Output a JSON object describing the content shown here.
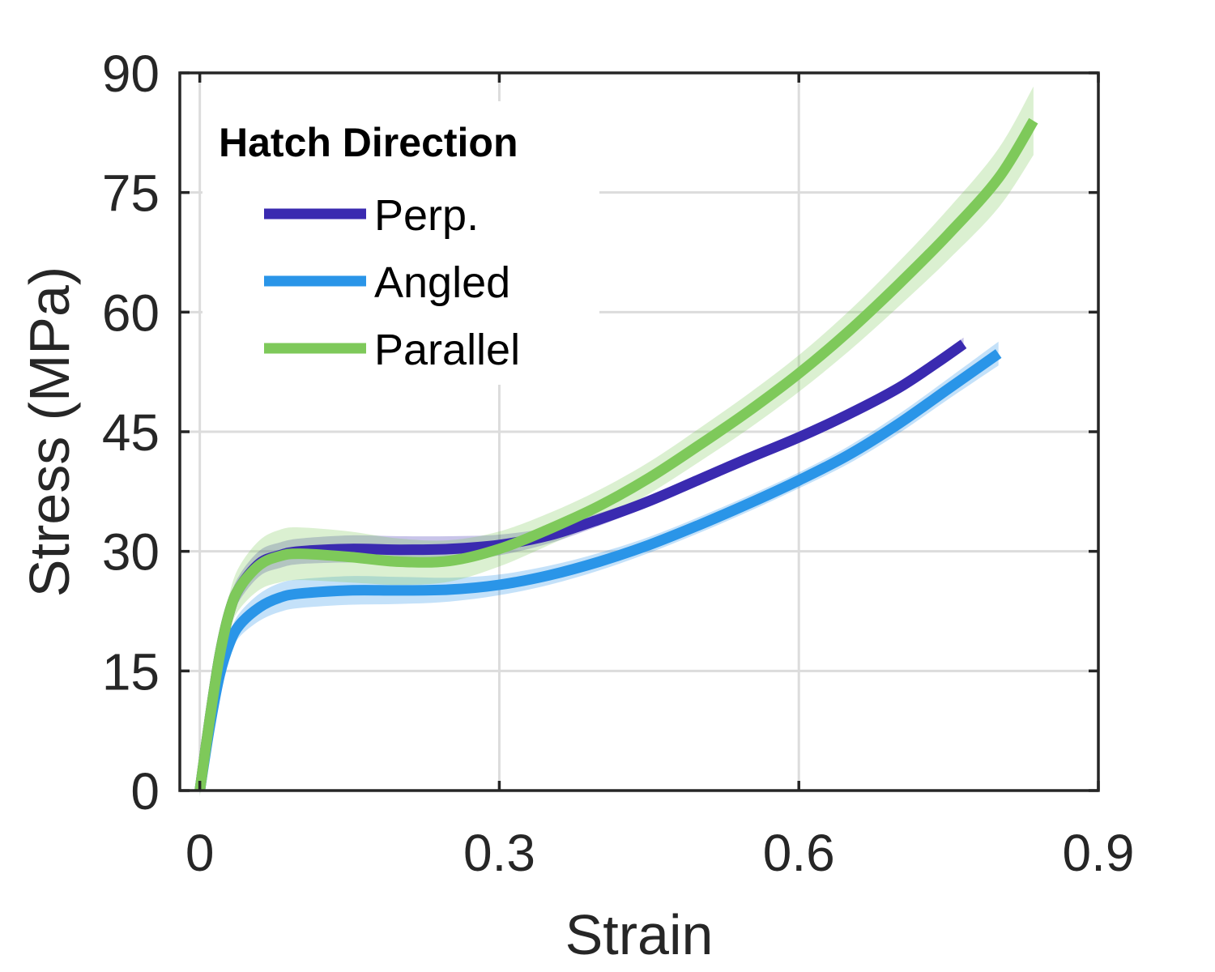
{
  "chart_data": {
    "type": "line",
    "title": "",
    "xlabel": "Strain",
    "ylabel": "Stress (MPa)",
    "xlim": [
      -0.02,
      0.9
    ],
    "ylim": [
      0,
      90
    ],
    "x_ticks": [
      0,
      0.3,
      0.6,
      0.9
    ],
    "x_tick_labels": [
      "0",
      "0.3",
      "0.6",
      "0.9"
    ],
    "y_ticks": [
      0,
      15,
      30,
      45,
      60,
      75,
      90
    ],
    "y_tick_labels": [
      "0",
      "15",
      "30",
      "45",
      "60",
      "75",
      "90"
    ],
    "grid": true,
    "legend": {
      "title": "Hatch Direction",
      "position": "top-left"
    },
    "series": [
      {
        "name": "Perp.",
        "color": "#3a2ab0",
        "band_color": "#3a2ab0",
        "x": [
          0,
          0.01,
          0.02,
          0.03,
          0.04,
          0.06,
          0.08,
          0.1,
          0.15,
          0.2,
          0.25,
          0.3,
          0.35,
          0.4,
          0.45,
          0.5,
          0.55,
          0.6,
          0.65,
          0.7,
          0.74,
          0.765
        ],
        "y": [
          0,
          9,
          17,
          22.5,
          25.5,
          28.5,
          29.5,
          30,
          30.3,
          30.2,
          30.3,
          30.8,
          32,
          34,
          36.3,
          39,
          41.7,
          44.3,
          47.2,
          50.5,
          53.8,
          56
        ],
        "band": [
          0.6,
          1.0,
          1.3,
          1.5,
          1.6,
          1.6,
          1.6,
          1.6,
          1.7,
          1.7,
          1.6,
          1.3,
          1.0,
          0.8,
          0.6,
          0.6,
          0.6,
          0.6,
          0.6,
          0.6,
          0.7,
          0.8
        ]
      },
      {
        "name": "Angled",
        "color": "#2a95e8",
        "band_color": "#2a95e8",
        "x": [
          0,
          0.01,
          0.02,
          0.03,
          0.04,
          0.06,
          0.08,
          0.1,
          0.15,
          0.2,
          0.25,
          0.3,
          0.35,
          0.4,
          0.45,
          0.5,
          0.55,
          0.6,
          0.65,
          0.7,
          0.75,
          0.8
        ],
        "y": [
          0,
          8,
          14.5,
          18.5,
          20.8,
          23,
          24.2,
          24.7,
          25.1,
          25.1,
          25.2,
          25.8,
          27,
          28.7,
          30.8,
          33.3,
          36,
          38.9,
          42.1,
          46,
          50.4,
          54.8
        ],
        "band": [
          0.4,
          0.8,
          1.1,
          1.3,
          1.5,
          1.7,
          1.8,
          1.8,
          1.8,
          1.7,
          1.5,
          1.3,
          1.2,
          1.1,
          1.0,
          1.0,
          1.0,
          1.0,
          1.1,
          1.2,
          1.3,
          1.5
        ]
      },
      {
        "name": "Parallel",
        "color": "#7ec95a",
        "band_color": "#7ec95a",
        "x": [
          0,
          0.01,
          0.02,
          0.03,
          0.04,
          0.06,
          0.08,
          0.1,
          0.15,
          0.2,
          0.25,
          0.3,
          0.35,
          0.4,
          0.45,
          0.5,
          0.55,
          0.6,
          0.65,
          0.7,
          0.75,
          0.8,
          0.835
        ],
        "y": [
          0,
          9,
          17,
          22.5,
          25.5,
          28.3,
          29.4,
          29.7,
          29.3,
          28.7,
          28.8,
          30.3,
          32.8,
          35.7,
          39.2,
          43.3,
          47.6,
          52.3,
          57.6,
          63.5,
          69.8,
          76.8,
          84
        ],
        "band": [
          0.8,
          1.2,
          1.8,
          2.3,
          2.7,
          3.1,
          3.3,
          3.3,
          3.2,
          2.9,
          2.6,
          2.2,
          2.0,
          2.0,
          2.0,
          2.1,
          2.2,
          2.3,
          2.5,
          2.8,
          3.2,
          3.7,
          4.3
        ]
      }
    ]
  }
}
